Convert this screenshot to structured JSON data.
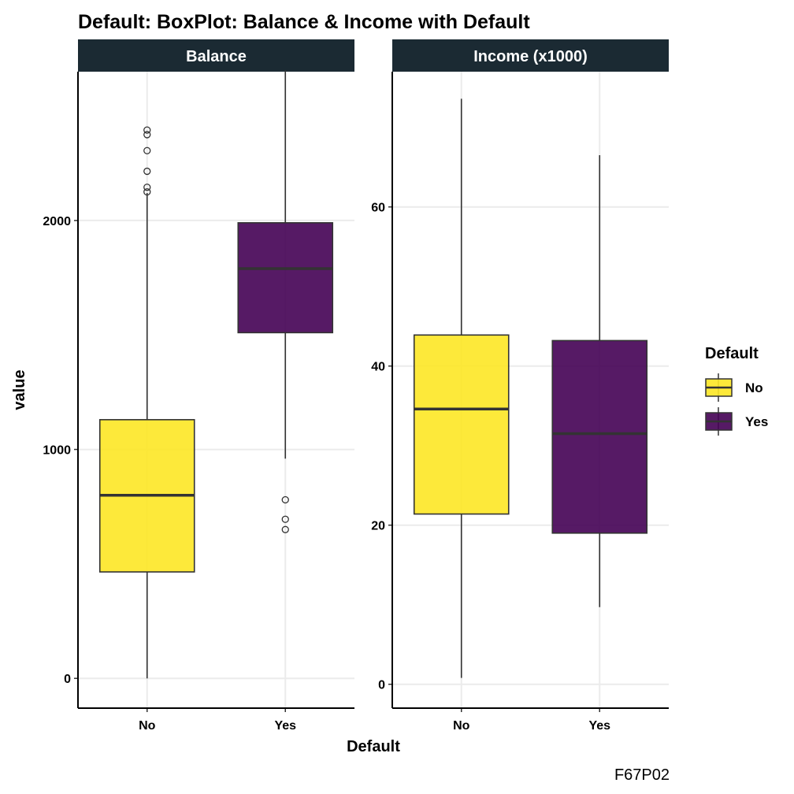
{
  "chart_data": {
    "type": "boxplot",
    "title": "Default: BoxPlot: Balance & Income with Default",
    "xlabel": "Default",
    "ylabel": "value",
    "caption": "F67P02",
    "categories": [
      "No",
      "Yes"
    ],
    "legend": {
      "title": "Default",
      "position": "right",
      "entries": [
        {
          "label": "No",
          "color": "#FDE725"
        },
        {
          "label": "Yes",
          "color": "#440154"
        }
      ]
    },
    "grid": true,
    "panels": [
      {
        "strip": "Balance",
        "ylim": [
          -130,
          2650
        ],
        "yticks": [
          0,
          1000,
          2000
        ],
        "boxes": [
          {
            "category": "No",
            "min": 0,
            "q1": 465,
            "median": 800,
            "q3": 1130,
            "max": 2120,
            "outliers": [
              2125,
              2145,
              2215,
              2305,
              2375,
              2395
            ]
          },
          {
            "category": "Yes",
            "min": 960,
            "q1": 1510,
            "median": 1790,
            "q3": 1990,
            "max": 2655,
            "outliers": [
              650,
              695,
              780
            ]
          }
        ]
      },
      {
        "strip": "Income (x1000)",
        "ylim": [
          -3,
          77
        ],
        "yticks": [
          0,
          20,
          40,
          60
        ],
        "boxes": [
          {
            "category": "No",
            "min": 0.8,
            "q1": 21.4,
            "median": 34.6,
            "q3": 43.9,
            "max": 73.6,
            "outliers": []
          },
          {
            "category": "Yes",
            "min": 9.7,
            "q1": 19.0,
            "median": 31.5,
            "q3": 43.2,
            "max": 66.5,
            "outliers": []
          }
        ]
      }
    ]
  }
}
